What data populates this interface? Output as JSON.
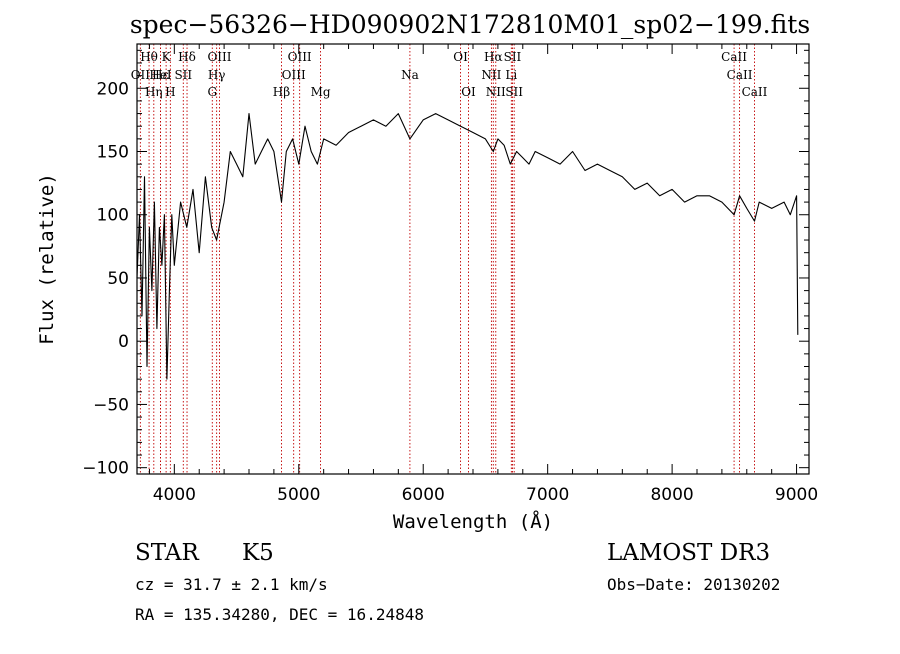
{
  "chart_data": {
    "type": "line",
    "title": "spec−56326−HD090902N172810M01_sp02−199.fits",
    "xlabel": "Wavelength (Å)",
    "ylabel": "Flux (relative)",
    "xlim": [
      3700,
      9100
    ],
    "ylim": [
      -105,
      235
    ],
    "xticks": [
      4000,
      5000,
      6000,
      7000,
      8000,
      9000
    ],
    "xtick_labels": [
      "4000",
      "5000",
      "6000",
      "7000",
      "8000",
      "9000"
    ],
    "yticks": [
      -100,
      -50,
      0,
      50,
      100,
      150,
      200
    ],
    "ytick_labels": [
      "−100",
      "−50",
      "0",
      "50",
      "100",
      "150",
      "200"
    ],
    "series": [
      {
        "name": "spectrum",
        "x": [
          3700,
          3720,
          3740,
          3760,
          3780,
          3800,
          3820,
          3840,
          3860,
          3880,
          3900,
          3920,
          3940,
          3960,
          3980,
          4000,
          4050,
          4100,
          4150,
          4200,
          4250,
          4300,
          4340,
          4400,
          4450,
          4500,
          4550,
          4600,
          4650,
          4700,
          4750,
          4800,
          4861,
          4900,
          4950,
          5000,
          5050,
          5100,
          5150,
          5200,
          5300,
          5400,
          5500,
          5600,
          5700,
          5800,
          5893,
          6000,
          6100,
          6200,
          6300,
          6400,
          6500,
          6563,
          6600,
          6650,
          6700,
          6750,
          6800,
          6850,
          6900,
          7000,
          7100,
          7200,
          7300,
          7400,
          7500,
          7600,
          7700,
          7800,
          7900,
          8000,
          8100,
          8200,
          8300,
          8400,
          8498,
          8542,
          8600,
          8662,
          8700,
          8800,
          8900,
          8950,
          9000,
          9010
        ],
        "y": [
          50,
          100,
          20,
          130,
          -20,
          90,
          40,
          110,
          10,
          90,
          60,
          100,
          -30,
          40,
          100,
          60,
          110,
          90,
          120,
          70,
          130,
          90,
          80,
          110,
          150,
          140,
          130,
          180,
          140,
          150,
          160,
          150,
          110,
          150,
          160,
          140,
          170,
          150,
          140,
          160,
          155,
          165,
          170,
          175,
          170,
          180,
          160,
          175,
          180,
          175,
          170,
          165,
          160,
          150,
          160,
          155,
          140,
          150,
          145,
          140,
          150,
          145,
          140,
          150,
          135,
          140,
          135,
          130,
          120,
          125,
          115,
          120,
          110,
          115,
          115,
          110,
          100,
          115,
          105,
          95,
          110,
          105,
          110,
          100,
          115,
          5
        ]
      }
    ],
    "emission_lines": [
      {
        "name": "Hθ",
        "wave": 3797,
        "label_row": 0
      },
      {
        "name": "OII",
        "wave": 3727,
        "label_row": 1
      },
      {
        "name": "Hη",
        "wave": 3835,
        "label_row": 2
      },
      {
        "name": "Hε",
        "wave": 3889,
        "label_row": 1
      },
      {
        "name": "HeI",
        "wave": 3889,
        "label_row": 1
      },
      {
        "name": "K",
        "wave": 3934,
        "label_row": 0
      },
      {
        "name": "H",
        "wave": 3968,
        "label_row": 2
      },
      {
        "name": "SII",
        "wave": 4072,
        "label_row": 1
      },
      {
        "name": "Hδ",
        "wave": 4102,
        "label_row": 0
      },
      {
        "name": "G",
        "wave": 4305,
        "label_row": 2
      },
      {
        "name": "Hγ",
        "wave": 4340,
        "label_row": 1
      },
      {
        "name": "OIII",
        "wave": 4363,
        "label_row": 0
      },
      {
        "name": "Hβ",
        "wave": 4861,
        "label_row": 2
      },
      {
        "name": "OIII",
        "wave": 4959,
        "label_row": 1
      },
      {
        "name": "OIII",
        "wave": 5007,
        "label_row": 0
      },
      {
        "name": "Mg",
        "wave": 5175,
        "label_row": 2
      },
      {
        "name": "Na",
        "wave": 5893,
        "label_row": 1
      },
      {
        "name": "OI",
        "wave": 6300,
        "label_row": 0
      },
      {
        "name": "OI",
        "wave": 6364,
        "label_row": 2
      },
      {
        "name": "NII",
        "wave": 6548,
        "label_row": 1
      },
      {
        "name": "Hα",
        "wave": 6563,
        "label_row": 0
      },
      {
        "name": "NII",
        "wave": 6583,
        "label_row": 2
      },
      {
        "name": "Li",
        "wave": 6708,
        "label_row": 1
      },
      {
        "name": "SII",
        "wave": 6717,
        "label_row": 0
      },
      {
        "name": "SII",
        "wave": 6731,
        "label_row": 2
      },
      {
        "name": "CaII",
        "wave": 8498,
        "label_row": 0
      },
      {
        "name": "CaII",
        "wave": 8542,
        "label_row": 1
      },
      {
        "name": "CaII",
        "wave": 8662,
        "label_row": 2
      }
    ]
  },
  "info": {
    "object_class": "STAR",
    "subclass": "K5",
    "survey": "LAMOST DR3",
    "redshift": "cz = 31.7 ± 2.1 km/s",
    "obs_date": "Obs−Date: 20130202",
    "coords": "RA = 135.34280, DEC =  16.24848"
  },
  "colors": {
    "axis": "#000000",
    "spectrum": "#000000",
    "lines": "#c00000",
    "background": "#ffffff"
  }
}
